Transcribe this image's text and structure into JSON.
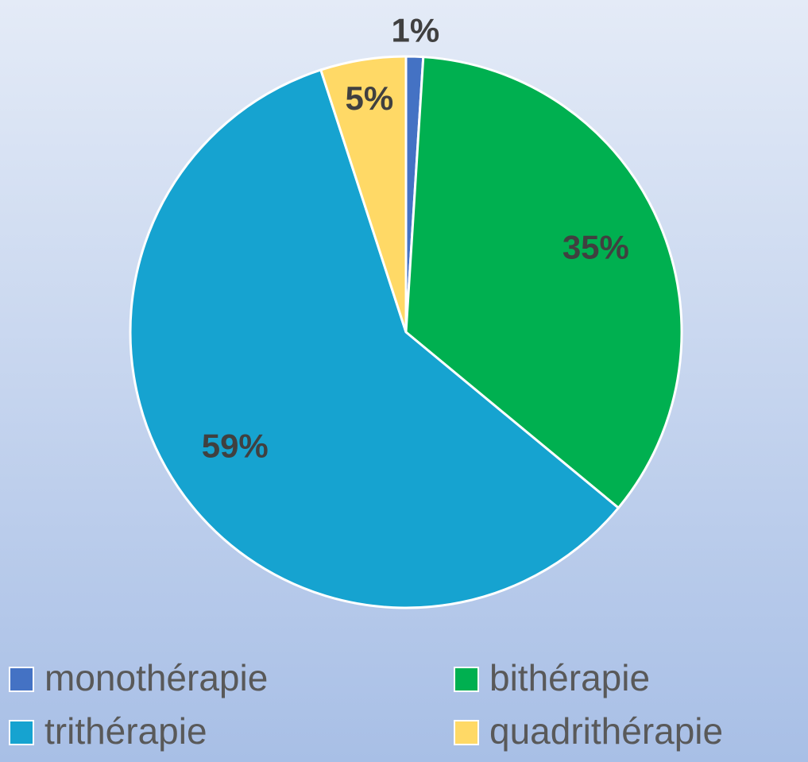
{
  "chart_data": {
    "type": "pie",
    "categories": [
      "monothérapie",
      "bithérapie",
      "trithérapie",
      "quadrithérapie"
    ],
    "values": [
      1,
      35,
      59,
      5
    ],
    "value_labels": [
      "1%",
      "35%",
      "59%",
      "5%"
    ],
    "colors": [
      "#4472c4",
      "#00b050",
      "#16a3d0",
      "#ffd966"
    ]
  }
}
